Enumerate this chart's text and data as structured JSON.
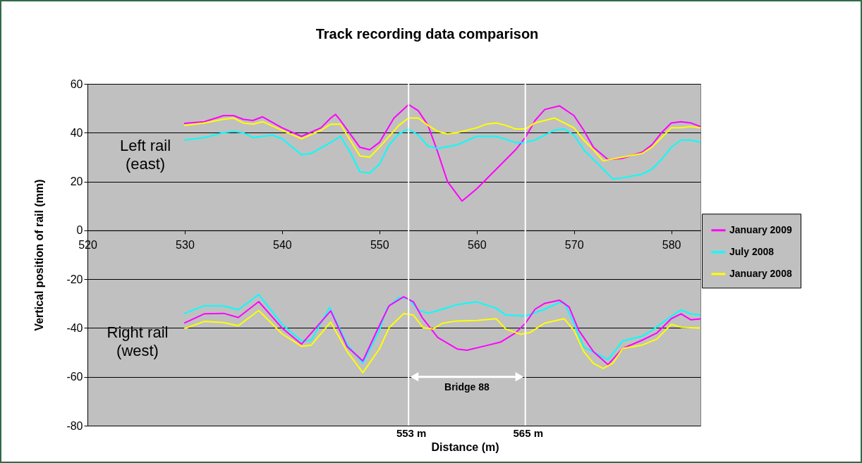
{
  "chart_data": {
    "type": "line",
    "title": "Track recording data comparison",
    "xlabel": "Distance (m)",
    "ylabel": "Vertical position of rail (mm)",
    "xlim": [
      520,
      583
    ],
    "xticks": [
      520,
      530,
      540,
      550,
      560,
      570,
      580
    ],
    "ylim": [
      -80,
      60
    ],
    "yticks": [
      -80,
      -60,
      -40,
      -20,
      0,
      20,
      40,
      60
    ],
    "grid": "y",
    "legend": "right",
    "marker": "none",
    "line_style": "solid",
    "series": [
      {
        "name": "January 2009",
        "color": "#ff00ff",
        "x": [
          530,
          532,
          534,
          535,
          536,
          537,
          538,
          540,
          542,
          544,
          545,
          545.5,
          546,
          548,
          549,
          550,
          551.5,
          553,
          554,
          555,
          556,
          557,
          558.5,
          560,
          562,
          564,
          565,
          566,
          567,
          568.5,
          570,
          571,
          572,
          573.5,
          575,
          577,
          578,
          579,
          580,
          581,
          582,
          583
        ],
        "values": [
          43.8,
          44.5,
          47,
          47,
          45.5,
          45,
          46.5,
          42,
          38.5,
          42,
          46,
          47.5,
          45,
          34,
          33,
          36,
          46,
          51.5,
          49,
          43,
          32,
          20,
          12,
          17,
          25,
          33,
          38,
          45,
          49.5,
          51,
          47,
          41,
          34,
          29,
          29.5,
          32,
          35,
          40,
          44,
          44.5,
          44,
          42.5
        ]
      },
      {
        "name": "July 2008",
        "color": "#00ffff",
        "x": [
          530,
          532,
          534,
          535,
          536,
          537,
          538,
          539,
          540,
          542,
          543,
          545,
          546,
          547,
          548,
          549,
          550,
          551,
          552,
          553,
          554,
          555,
          556,
          558,
          560,
          562,
          564,
          565,
          566,
          568,
          569,
          570,
          571,
          572,
          574,
          575,
          577,
          578,
          579,
          580,
          581,
          582,
          583
        ],
        "values": [
          37,
          38,
          40,
          40.5,
          40,
          38,
          38.5,
          39,
          37.5,
          31,
          31.5,
          36,
          38.5,
          32,
          24,
          23.5,
          27,
          35,
          39.5,
          41.5,
          39,
          34.5,
          33.5,
          35,
          38.5,
          38.5,
          36,
          36,
          37,
          41,
          41.5,
          39,
          33,
          29,
          21,
          21.5,
          23,
          25,
          29,
          34,
          37,
          37,
          36
        ]
      },
      {
        "name": "January 2008",
        "color": "#ffff00",
        "x": [
          530,
          532,
          534,
          535,
          536,
          537,
          538,
          540,
          542,
          544,
          545,
          546,
          547,
          548,
          549,
          550,
          552,
          553,
          554,
          555,
          556,
          557,
          558,
          560,
          561,
          562,
          563,
          564,
          565,
          566,
          568,
          570,
          571,
          572,
          573,
          575,
          577,
          578,
          579,
          580,
          581,
          582,
          583
        ],
        "values": [
          43,
          44,
          45.5,
          46,
          44,
          43.5,
          44.5,
          41,
          37.5,
          41,
          43.5,
          43.5,
          37,
          30.5,
          30,
          34,
          43,
          46,
          46,
          43,
          40.5,
          39.5,
          40,
          42,
          43.5,
          44,
          43,
          41.5,
          41.5,
          44,
          46,
          42,
          37,
          33,
          28.5,
          30,
          31.5,
          34,
          38,
          42,
          42,
          42.5,
          42
        ]
      },
      {
        "color": "#00ffff",
        "x": [
          530,
          532,
          534,
          535.5,
          537.6,
          540,
          542,
          543,
          544.9,
          546.7,
          548.3,
          550,
          550.8,
          552,
          553,
          554,
          555,
          556.5,
          558,
          560,
          562,
          563,
          565,
          567,
          568.5,
          569,
          570,
          571,
          573.5,
          575,
          577,
          578,
          580,
          581,
          582,
          583
        ],
        "values": [
          -34,
          -30.9,
          -31,
          -32.5,
          -26.3,
          -38.5,
          -45.3,
          -45,
          -31.6,
          -46.8,
          -54.4,
          -41,
          -31.8,
          -27.5,
          -28,
          -32.7,
          -34,
          -32.3,
          -30.4,
          -29.3,
          -31.9,
          -34.7,
          -35.1,
          -32.3,
          -29.6,
          -29.6,
          -38.1,
          -47.8,
          -52.9,
          -45.3,
          -43.4,
          -41,
          -35.2,
          -32.6,
          -34.2,
          -34.7
        ]
      },
      {
        "color": "#ff00ff",
        "x": [
          530,
          532,
          534,
          535.5,
          537.6,
          540,
          542,
          545,
          546.7,
          548.3,
          550,
          551,
          552.5,
          553.5,
          554.4,
          556,
          558,
          559,
          561,
          562.5,
          564,
          565,
          566,
          567,
          568.5,
          569.5,
          570.5,
          572,
          573.5,
          575,
          577,
          578.5,
          580,
          581,
          582,
          583
        ],
        "values": [
          -37.9,
          -34.2,
          -34,
          -35.7,
          -29.2,
          -40,
          -46.6,
          -33,
          -47.7,
          -53.5,
          -39,
          -30.9,
          -27.2,
          -29.3,
          -35.7,
          -43.9,
          -48.6,
          -49.1,
          -47.2,
          -45.7,
          -42,
          -38.1,
          -32.3,
          -29.9,
          -28.6,
          -31.4,
          -41,
          -49.7,
          -55,
          -48.4,
          -45,
          -42.1,
          -36.2,
          -34.2,
          -36.6,
          -36.3
        ]
      },
      {
        "color": "#ffff00",
        "x": [
          530,
          532,
          534,
          535.5,
          537.6,
          540,
          542,
          543,
          545,
          546.7,
          548.3,
          550,
          551,
          552.5,
          553.5,
          554.5,
          555.5,
          556.5,
          558,
          560,
          562,
          563,
          564.5,
          565.5,
          567,
          569,
          570,
          571,
          572,
          573,
          574,
          575,
          577,
          578.5,
          580,
          581,
          583
        ],
        "values": [
          -40.2,
          -37.3,
          -37.8,
          -39.1,
          -32.8,
          -42.4,
          -47.5,
          -47,
          -37.6,
          -49.7,
          -58.3,
          -48.6,
          -39.9,
          -34.1,
          -34.7,
          -39.9,
          -40.4,
          -38,
          -37.1,
          -36.9,
          -36.2,
          -40.4,
          -42.6,
          -41.8,
          -38,
          -36.2,
          -41,
          -49.6,
          -54.5,
          -56.6,
          -54.4,
          -48.4,
          -47,
          -44.6,
          -38.5,
          -39.7,
          -40
        ]
      }
    ],
    "ref_lines": [
      {
        "axis": "x",
        "value": 553,
        "label": "553 m",
        "color": "#ffffff"
      },
      {
        "axis": "x",
        "value": 565,
        "label": "565 m",
        "color": "#ffffff"
      }
    ],
    "annotations": [
      "Left rail\n(east)",
      "Right rail\n(west)",
      "Bridge 88"
    ]
  }
}
